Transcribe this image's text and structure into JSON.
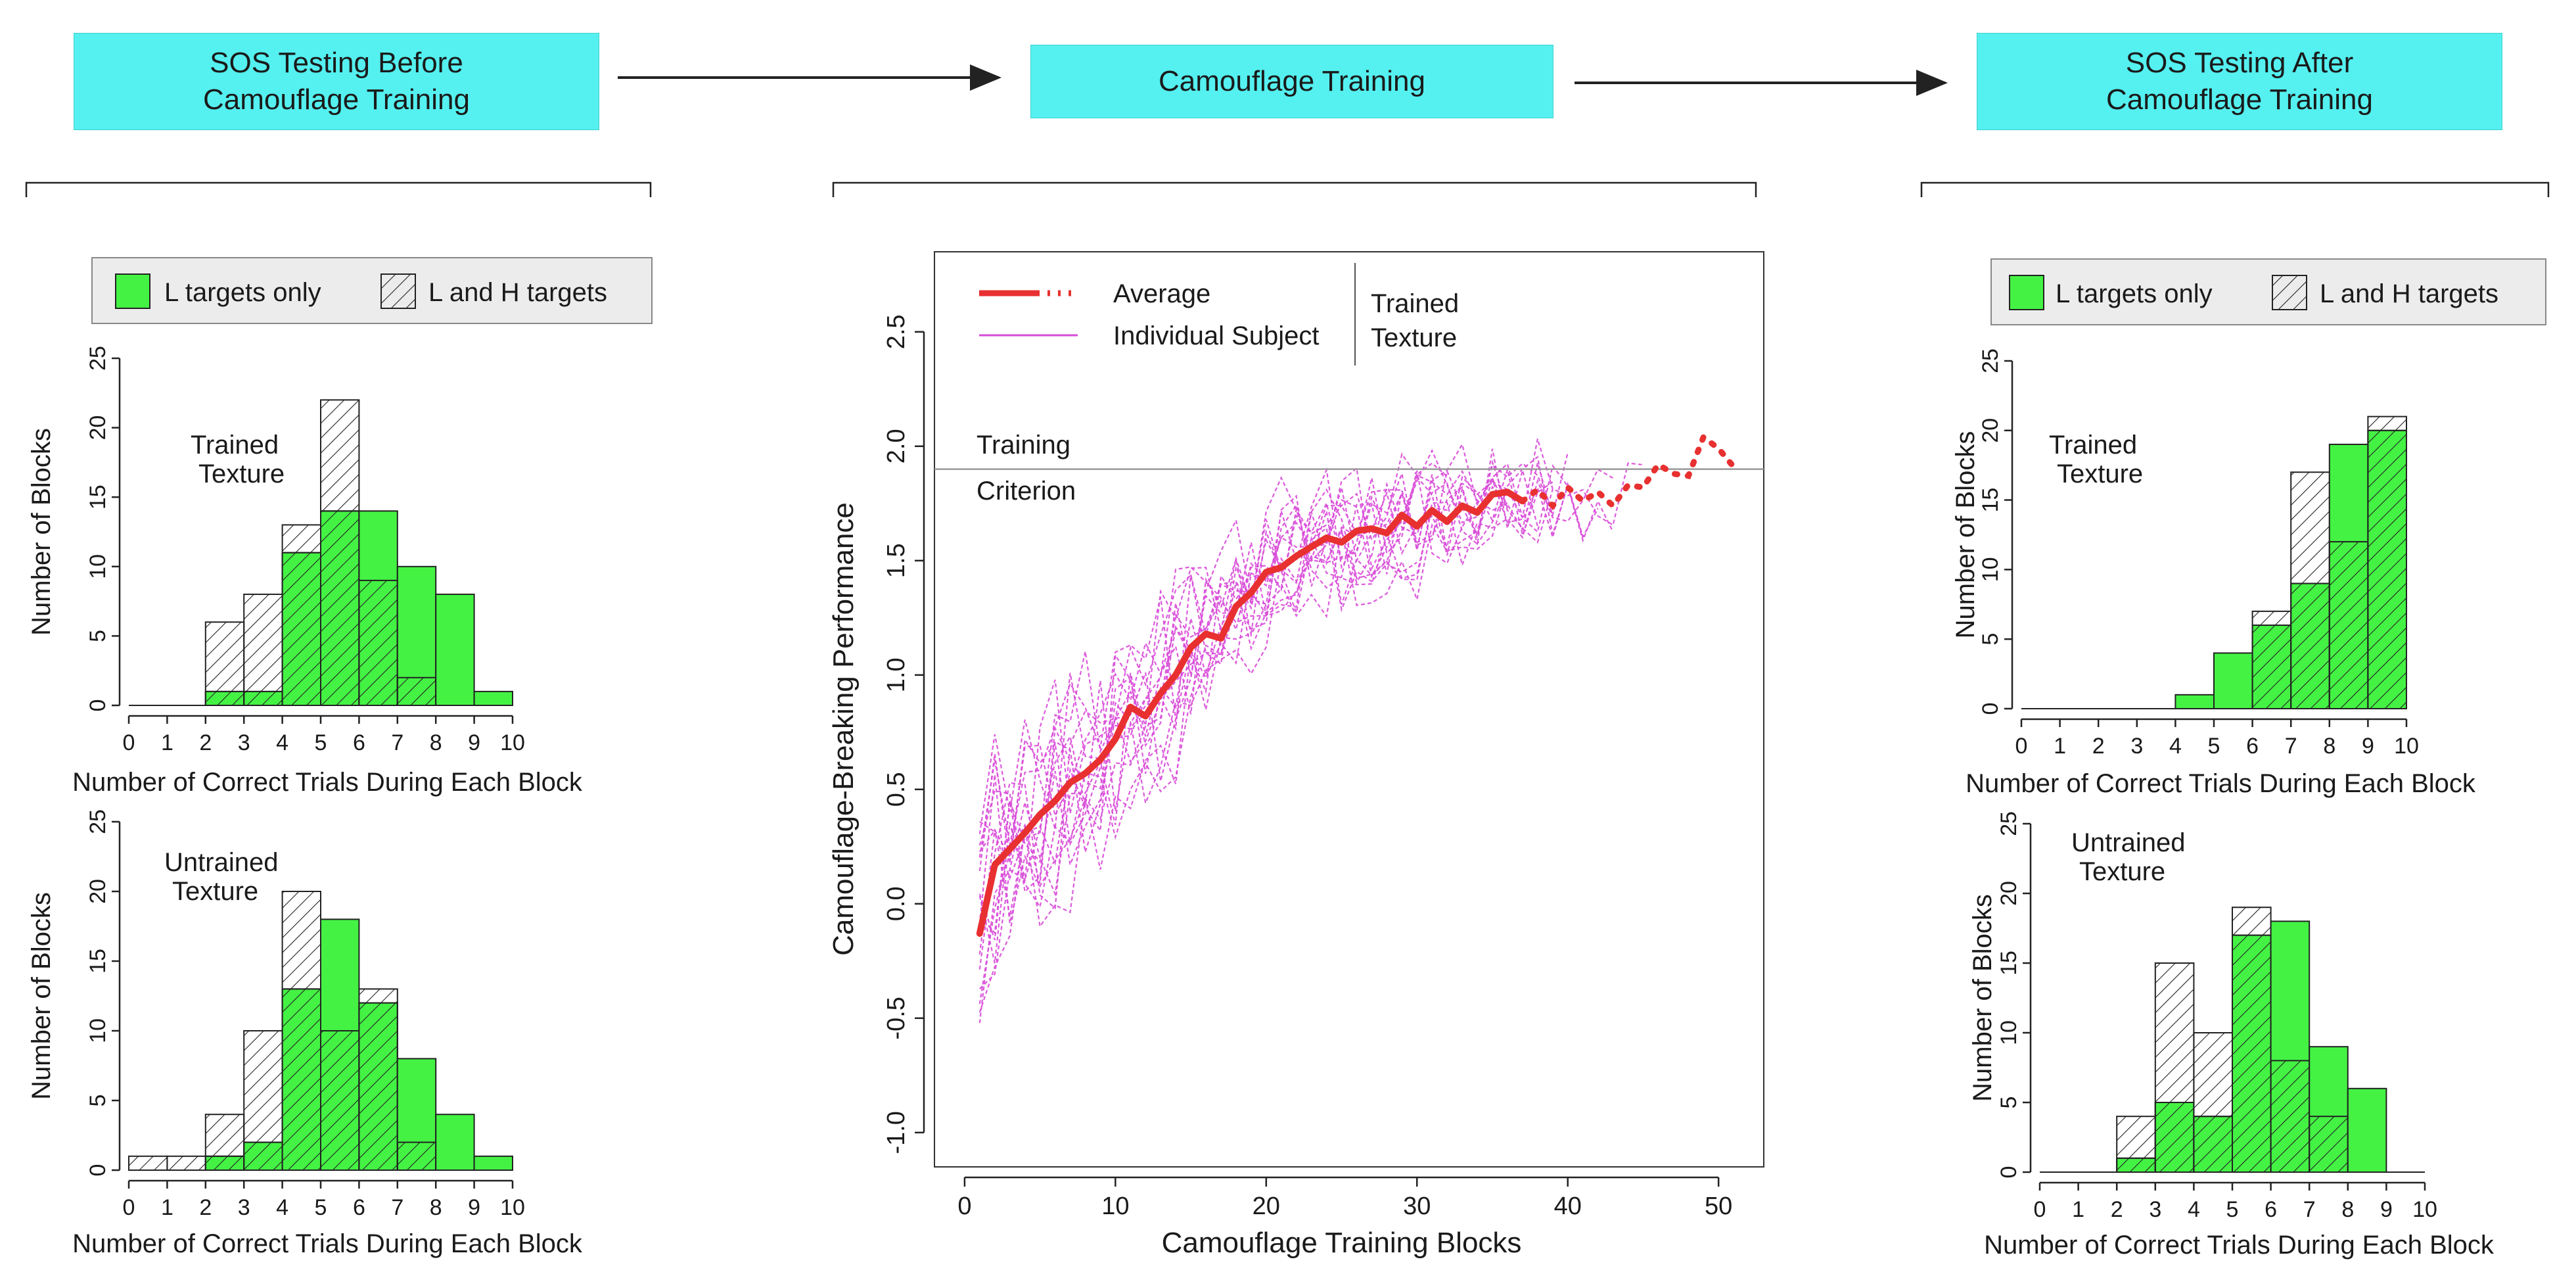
{
  "flow": {
    "boxes": [
      {
        "line1": "SOS Testing Before",
        "line2": "Camouflage Training"
      },
      {
        "line1": "Camouflage Training"
      },
      {
        "line1": "SOS Testing After",
        "line2": "Camouflage Training"
      }
    ],
    "arrows": 2
  },
  "colors": {
    "box_fill": "#55f0f0",
    "l_fill": "#44f244",
    "avg_line": "#e83030",
    "individual_line": "#d84ad8",
    "criterion_line": "#999999"
  },
  "legends": {
    "hist": {
      "l_only": "L targets only",
      "l_and_h": "L and H targets"
    },
    "line": {
      "average": "Average",
      "individual": "Individual Subject",
      "group_line1": "Trained",
      "group_line2": "Texture"
    }
  },
  "chart_data": [
    {
      "id": "before_trained",
      "type": "bar",
      "title_line1": "Trained",
      "title_line2": "Texture",
      "xlabel": "Number of Correct Trials During Each Block",
      "ylabel": "Number of Blocks",
      "xlim": [
        0,
        10
      ],
      "ylim": [
        0,
        25
      ],
      "xticks": [
        "0",
        "1",
        "2",
        "3",
        "4",
        "5",
        "6",
        "7",
        "8",
        "9",
        "10"
      ],
      "yticks": [
        "0",
        "5",
        "10",
        "15",
        "20",
        "25"
      ],
      "series": [
        {
          "name": "L and H targets",
          "values": [
            0,
            0,
            6,
            8,
            13,
            22,
            9,
            2,
            0,
            0
          ]
        },
        {
          "name": "L targets only",
          "values": [
            0,
            0,
            1,
            1,
            11,
            14,
            14,
            10,
            8,
            1
          ]
        }
      ]
    },
    {
      "id": "before_untrained",
      "type": "bar",
      "title_line1": "Untrained",
      "title_line2": "Texture",
      "xlabel": "Number of Correct Trials During Each Block",
      "ylabel": "Number of Blocks",
      "xlim": [
        0,
        10
      ],
      "ylim": [
        0,
        25
      ],
      "xticks": [
        "0",
        "1",
        "2",
        "3",
        "4",
        "5",
        "6",
        "7",
        "8",
        "9",
        "10"
      ],
      "yticks": [
        "0",
        "5",
        "10",
        "15",
        "20",
        "25"
      ],
      "series": [
        {
          "name": "L and H targets",
          "values": [
            1,
            1,
            4,
            10,
            20,
            10,
            13,
            2,
            0,
            0
          ]
        },
        {
          "name": "L targets only",
          "values": [
            0,
            0,
            1,
            2,
            13,
            18,
            12,
            8,
            4,
            1
          ]
        }
      ]
    },
    {
      "id": "training",
      "type": "line",
      "xlabel": "Camouflage Training Blocks",
      "ylabel": "Camouflage-Breaking Performance",
      "xlim": [
        -2,
        53
      ],
      "ylim": [
        -1.15,
        2.85
      ],
      "xticks": [
        "0",
        "10",
        "20",
        "30",
        "40",
        "50"
      ],
      "yticks": [
        "-1.0",
        "-0.5",
        "0.0",
        "0.5",
        "1.0",
        "1.5",
        "2.0",
        "2.5"
      ],
      "criterion": 1.9,
      "criterion_label_line1": "Training",
      "criterion_label_line2": "Criterion",
      "average_solid": {
        "x": [
          1,
          2,
          3,
          4,
          5,
          6,
          7,
          8,
          9,
          10,
          11,
          12,
          13,
          14,
          15,
          16,
          17,
          18,
          19,
          20,
          21,
          22,
          23,
          24,
          25,
          26,
          27,
          28,
          29,
          30,
          31,
          32,
          33,
          34,
          35,
          36,
          37
        ],
        "y": [
          -0.13,
          0.17,
          0.24,
          0.31,
          0.39,
          0.45,
          0.53,
          0.57,
          0.63,
          0.72,
          0.86,
          0.82,
          0.92,
          1.0,
          1.12,
          1.18,
          1.16,
          1.3,
          1.36,
          1.45,
          1.47,
          1.52,
          1.56,
          1.6,
          1.58,
          1.63,
          1.64,
          1.62,
          1.7,
          1.65,
          1.72,
          1.67,
          1.74,
          1.71,
          1.79,
          1.8,
          1.76
        ]
      },
      "average_dotted": {
        "x": [
          37,
          38,
          39,
          40,
          41,
          42,
          43,
          44,
          45,
          46,
          47,
          48,
          49,
          50,
          51
        ],
        "y": [
          1.76,
          1.81,
          1.74,
          1.82,
          1.76,
          1.8,
          1.74,
          1.83,
          1.82,
          1.92,
          1.88,
          1.87,
          2.04,
          1.99,
          1.91
        ]
      },
      "individual_count": 16
    },
    {
      "id": "after_trained",
      "type": "bar",
      "title_line1": "Trained",
      "title_line2": "Texture",
      "xlabel": "Number of Correct Trials During Each Block",
      "ylabel": "Number of Blocks",
      "xlim": [
        0,
        10
      ],
      "ylim": [
        0,
        25
      ],
      "xticks": [
        "0",
        "1",
        "2",
        "3",
        "4",
        "5",
        "6",
        "7",
        "8",
        "9",
        "10"
      ],
      "yticks": [
        "0",
        "5",
        "10",
        "15",
        "20",
        "25"
      ],
      "series": [
        {
          "name": "L and H targets",
          "values": [
            0,
            0,
            0,
            0,
            0,
            0,
            7,
            17,
            12,
            21
          ]
        },
        {
          "name": "L targets only",
          "values": [
            0,
            0,
            0,
            0,
            1,
            4,
            6,
            9,
            19,
            20
          ]
        }
      ]
    },
    {
      "id": "after_untrained",
      "type": "bar",
      "title_line1": "Untrained",
      "title_line2": "Texture",
      "xlabel": "Number of Correct Trials During Each Block",
      "ylabel": "Number of Blocks",
      "xlim": [
        0,
        10
      ],
      "ylim": [
        0,
        25
      ],
      "xticks": [
        "0",
        "1",
        "2",
        "3",
        "4",
        "5",
        "6",
        "7",
        "8",
        "9",
        "10"
      ],
      "yticks": [
        "0",
        "5",
        "10",
        "15",
        "20",
        "25"
      ],
      "series": [
        {
          "name": "L and H targets",
          "values": [
            0,
            0,
            4,
            15,
            10,
            19,
            8,
            4,
            0,
            0
          ]
        },
        {
          "name": "L targets only",
          "values": [
            0,
            0,
            1,
            5,
            4,
            17,
            18,
            9,
            6,
            0
          ]
        }
      ]
    }
  ]
}
